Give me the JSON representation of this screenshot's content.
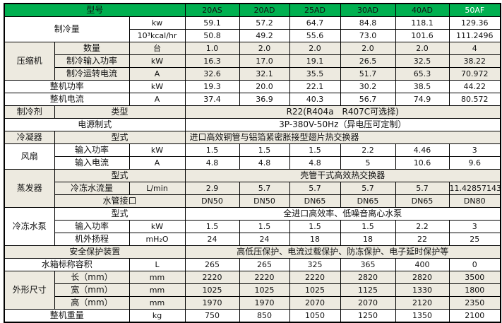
{
  "colors": {
    "header_bg": "#00B050",
    "shaded_row_bg": "#EDEAE0",
    "highlight_model_text": "#FFFFFF"
  },
  "table": {
    "header": {
      "label": "型号",
      "models": [
        "20AS",
        "20AD",
        "25AD",
        "30AD",
        "40AD",
        "50AF"
      ]
    },
    "cooling_capacity": {
      "label": "制冷量",
      "rows": [
        {
          "unit": "kw",
          "values": [
            "59.1",
            "57.2",
            "64.7",
            "84.8",
            "118.1",
            "129.36"
          ]
        },
        {
          "unit": "10³kcal/hr",
          "values": [
            "50.8",
            "49.2",
            "55.6",
            "73.0",
            "101.6",
            "111.2496"
          ]
        }
      ]
    },
    "compressor": {
      "label": "压缩机",
      "rows": [
        {
          "label": "数量",
          "unit": "台",
          "values": [
            "1.0",
            "2.0",
            "2.0",
            "2.0",
            "2.0",
            "4"
          ]
        },
        {
          "label": "制冷输入功率",
          "unit": "kW",
          "values": [
            "16.3",
            "17.0",
            "19.1",
            "26.5",
            "32.5",
            "38.22"
          ]
        },
        {
          "label": "制冷运转电流",
          "unit": "A",
          "values": [
            "32.6",
            "32.1",
            "35.5",
            "51.7",
            "65.3",
            "70.972"
          ]
        }
      ]
    },
    "total_power": {
      "label": "整机功率",
      "unit": "kW",
      "values": [
        "19.3",
        "20.0",
        "22.1",
        "30.2",
        "38.5",
        "44.22"
      ]
    },
    "total_current": {
      "label": "整机电流",
      "unit": "A",
      "values": [
        "37.4",
        "36.9",
        "40.3",
        "56.7",
        "74.9",
        "80.572"
      ]
    },
    "refrigerant": {
      "label": "制冷剂",
      "sublabel": "类型",
      "value": "R22(R404a　R407C可选择)"
    },
    "power_supply": {
      "label": "电源制式",
      "value": "3P-380V-50Hz（异电压可定制）"
    },
    "condenser": {
      "label": "冷凝器",
      "sublabel": "型式",
      "value": "进口高效铜管与铝箔紧密胀接型翅片热交换器"
    },
    "fan": {
      "label": "风扇",
      "rows": [
        {
          "label": "输入功率",
          "unit": "kW",
          "values": [
            "1.5",
            "1.5",
            "1.5",
            "2.2",
            "4.46",
            "3"
          ]
        },
        {
          "label": "输入电流",
          "unit": "A",
          "values": [
            "4.8",
            "4.8",
            "4.8",
            "5",
            "10.6",
            "9.6"
          ]
        }
      ]
    },
    "evaporator": {
      "label": "蒸发器",
      "type": {
        "label": "型式",
        "value": "壳管干式高效热交换器"
      },
      "flow": {
        "label": "冷冻水流量",
        "unit": "L/min",
        "values": [
          "2.9",
          "5.7",
          "5.7",
          "5.7",
          "5.7",
          "11.42857143"
        ]
      },
      "pipe": {
        "label": "水管接口",
        "values": [
          "DN50",
          "DN50",
          "DN65",
          "DN65",
          "DN65",
          "DN80"
        ]
      }
    },
    "pump": {
      "label": "冷冻水泵",
      "type": {
        "label": "型式",
        "value": "全进口高效率、低噪音离心水泵"
      },
      "rows": [
        {
          "label": "输入功率",
          "unit": "kW",
          "values": [
            "1.5",
            "1.5",
            "1.5",
            "1.5",
            "2.2",
            "3"
          ]
        },
        {
          "label": "机外扬程",
          "unit": "mH₂O",
          "values": [
            "24",
            "24",
            "18",
            "18",
            "22",
            "25"
          ]
        }
      ]
    },
    "safety": {
      "label": "安全保护装置",
      "value": "高低压保护、电流过载保护、防冻保护、电子延时保护等"
    },
    "tank": {
      "label": "水箱标称容积",
      "unit": "L",
      "values": [
        "265",
        "265",
        "325",
        "365",
        "400",
        "0"
      ]
    },
    "dimensions": {
      "label": "外形尺寸",
      "rows": [
        {
          "label": "长（mm）",
          "unit": "mm",
          "values": [
            "2220",
            "2220",
            "2220",
            "2820",
            "2820",
            "3500"
          ]
        },
        {
          "label": "宽（mm）",
          "unit": "mm",
          "values": [
            "1025",
            "1025",
            "1025",
            "1125",
            "1330",
            "1800"
          ]
        },
        {
          "label": "高（mm）",
          "unit": "mm",
          "values": [
            "1970",
            "1970",
            "2070",
            "2070",
            "2120",
            "2350"
          ]
        }
      ]
    },
    "weight": {
      "label": "整机重量",
      "unit": "kg",
      "values": [
        "750",
        "850",
        "1050",
        "1250",
        "1350",
        "2100"
      ]
    }
  }
}
